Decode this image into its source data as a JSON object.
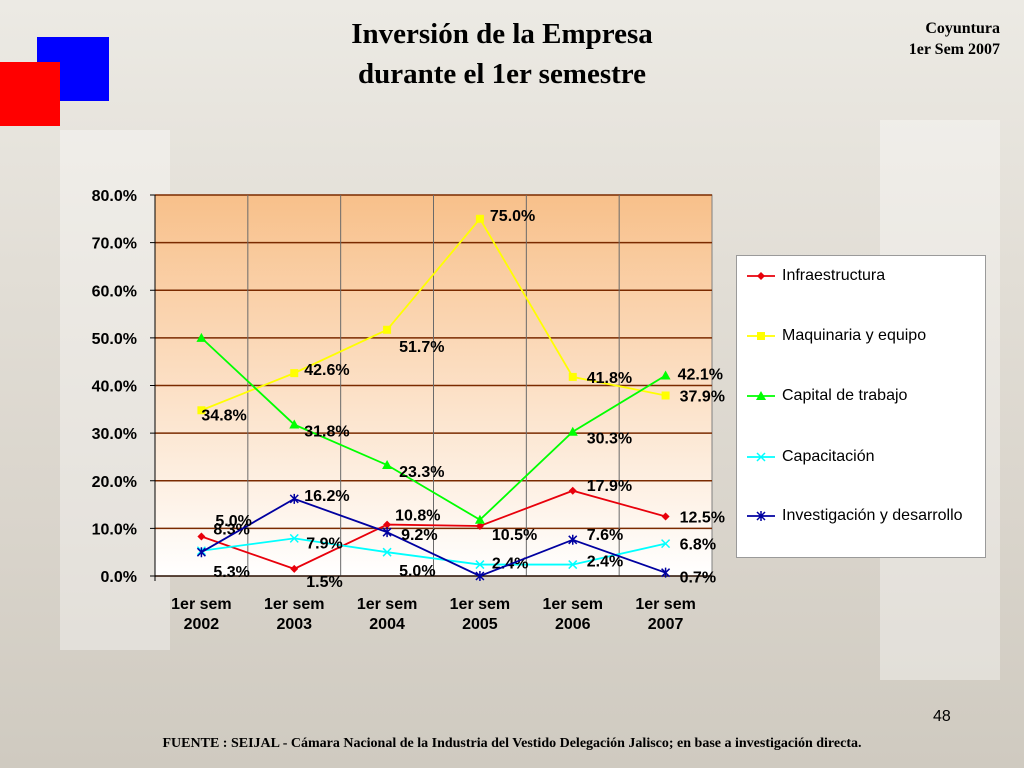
{
  "title_line1": "Inversión de la Empresa",
  "title_line2": "durante el 1er semestre",
  "corner_line1": "Coyuntura",
  "corner_line2": "1er Sem 2007",
  "page_number": "48",
  "footer": "FUENTE :  SEIJAL - Cámara Nacional de la Industria del Vestido Delegación Jalisco;  en base a investigación directa.",
  "colors": {
    "blue_square": "#0000ff",
    "red_square": "#ff0000",
    "plot_top": "#f8c08a",
    "plot_bottom": "#ffffff",
    "gridline": "#7a2a00"
  },
  "chart_data": {
    "type": "line",
    "categories": [
      [
        "1er sem",
        "2002"
      ],
      [
        "1er sem",
        "2003"
      ],
      [
        "1er sem",
        "2004"
      ],
      [
        "1er sem",
        "2005"
      ],
      [
        "1er sem",
        "2006"
      ],
      [
        "1er sem",
        "2007"
      ]
    ],
    "ylim": [
      0,
      80
    ],
    "yticks": [
      "0.0%",
      "10.0%",
      "20.0%",
      "30.0%",
      "40.0%",
      "50.0%",
      "60.0%",
      "70.0%",
      "80.0%"
    ],
    "grid": true,
    "legend_position": "right",
    "series": [
      {
        "name": "Infraestructura",
        "color": "#e8000b",
        "marker": "diamond",
        "values": [
          8.3,
          1.5,
          10.8,
          10.5,
          17.9,
          12.5
        ],
        "labels": [
          "8.3%",
          "1.5%",
          "10.8%",
          "10.5%",
          "17.9%",
          "12.5%"
        ]
      },
      {
        "name": "Maquinaria y equipo",
        "color": "#ffff00",
        "marker": "square",
        "values": [
          34.8,
          42.6,
          51.7,
          75.0,
          41.8,
          37.9
        ],
        "labels": [
          "34.8%",
          "42.6%",
          "51.7%",
          "75.0%",
          "41.8%",
          "37.9%"
        ]
      },
      {
        "name": "Capital de trabajo",
        "color": "#00ff00",
        "marker": "triangle",
        "values": [
          50.0,
          31.8,
          23.3,
          11.8,
          30.3,
          42.1
        ],
        "labels": [
          "",
          "31.8%",
          "23.3%",
          "",
          "30.3%",
          "42.1%"
        ]
      },
      {
        "name": "Capacitación",
        "color": "#00ffff",
        "marker": "x",
        "values": [
          5.3,
          7.9,
          5.0,
          2.4,
          2.4,
          6.8
        ],
        "labels": [
          "5.3%",
          "7.9%",
          "5.0%",
          "2.4%",
          "2.4%",
          "6.8%"
        ]
      },
      {
        "name": "Investigación y desarrollo",
        "color": "#0000a0",
        "marker": "star",
        "values": [
          5.0,
          16.2,
          9.2,
          0.0,
          7.6,
          0.7
        ],
        "labels": [
          "5.0%",
          "16.2%",
          "9.2%",
          "",
          "7.6%",
          "0.7%"
        ]
      }
    ]
  }
}
